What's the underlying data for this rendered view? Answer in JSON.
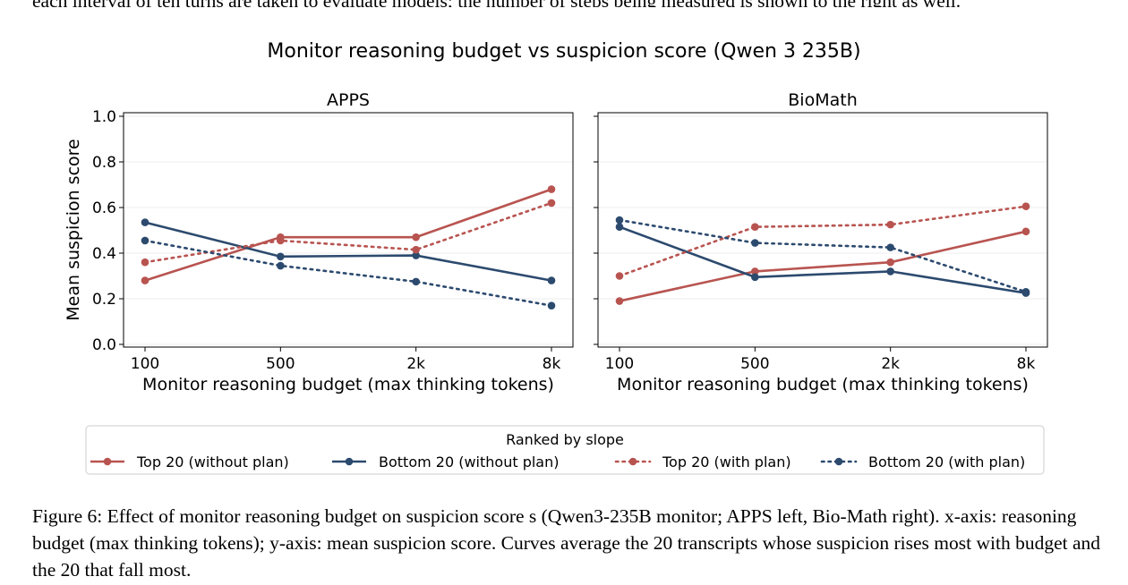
{
  "figure": {
    "suptitle": "Monitor reasoning budget vs suspicion score (Qwen 3 235B)",
    "caption_top_fragment": "each interval of ten turns are taken to evaluate models; the number of steps being measured is shown to the right as well.",
    "caption": "Figure 6: Effect of monitor reasoning budget on suspicion score s (Qwen3-235B monitor; APPS left, Bio-Math right). x-axis: reasoning budget (max thinking tokens); y-axis: mean suspicion score. Curves average the 20 transcripts whose suspicion rises most with budget and the 20 that fall most."
  },
  "colors": {
    "top": "#b85450",
    "bottom": "#2c4a6e"
  },
  "legend": {
    "title": "Ranked by slope",
    "placement": "bottom-center",
    "entries": [
      {
        "label": "Top 20 (without plan)",
        "color": "#b85450",
        "style": "solid"
      },
      {
        "label": "Bottom 20 (without plan)",
        "color": "#2c4a6e",
        "style": "solid"
      },
      {
        "label": "Top 20 (with plan)",
        "color": "#b85450",
        "style": "dotted"
      },
      {
        "label": "Bottom 20 (with plan)",
        "color": "#2c4a6e",
        "style": "dotted"
      }
    ]
  },
  "chart_data": [
    {
      "type": "line",
      "title": "APPS",
      "xlabel": "Monitor reasoning budget (max thinking tokens)",
      "ylabel": "Mean suspicion score",
      "categories": [
        "100",
        "500",
        "2k",
        "8k"
      ],
      "ylim": [
        0,
        1.0
      ],
      "yticks": [
        "0.0",
        "0.2",
        "0.4",
        "0.6",
        "0.8",
        "1.0"
      ],
      "grid": "horizontal",
      "series": [
        {
          "name": "Top 20 (without plan)",
          "color": "#b85450",
          "style": "solid",
          "values": [
            0.28,
            0.47,
            0.47,
            0.68
          ]
        },
        {
          "name": "Bottom 20 (without plan)",
          "color": "#2c4a6e",
          "style": "solid",
          "values": [
            0.535,
            0.385,
            0.39,
            0.28
          ]
        },
        {
          "name": "Top 20 (with plan)",
          "color": "#b85450",
          "style": "dotted",
          "values": [
            0.36,
            0.455,
            0.415,
            0.62
          ]
        },
        {
          "name": "Bottom 20 (with plan)",
          "color": "#2c4a6e",
          "style": "dotted",
          "values": [
            0.455,
            0.345,
            0.275,
            0.17
          ]
        }
      ]
    },
    {
      "type": "line",
      "title": "BioMath",
      "xlabel": "Monitor reasoning budget (max thinking tokens)",
      "ylabel": "",
      "categories": [
        "100",
        "500",
        "2k",
        "8k"
      ],
      "ylim": [
        0,
        1.0
      ],
      "yticks": [],
      "grid": "horizontal",
      "series": [
        {
          "name": "Top 20 (without plan)",
          "color": "#b85450",
          "style": "solid",
          "values": [
            0.19,
            0.32,
            0.36,
            0.495
          ]
        },
        {
          "name": "Bottom 20 (without plan)",
          "color": "#2c4a6e",
          "style": "solid",
          "values": [
            0.515,
            0.295,
            0.32,
            0.225
          ]
        },
        {
          "name": "Top 20 (with plan)",
          "color": "#b85450",
          "style": "dotted",
          "values": [
            0.3,
            0.515,
            0.525,
            0.605
          ]
        },
        {
          "name": "Bottom 20 (with plan)",
          "color": "#2c4a6e",
          "style": "dotted",
          "values": [
            0.545,
            0.445,
            0.425,
            0.23
          ]
        }
      ]
    }
  ]
}
